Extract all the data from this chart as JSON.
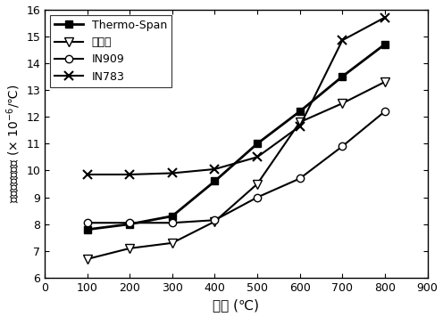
{
  "title": "",
  "xlabel": "温度 (℃)",
  "ylabel": "平均线膨胀系数 (× 10$^{-6}$/℃)",
  "xlim": [
    0,
    900
  ],
  "ylim": [
    6,
    16
  ],
  "xticks": [
    0,
    100,
    200,
    300,
    400,
    500,
    600,
    700,
    800,
    900
  ],
  "yticks": [
    6,
    7,
    8,
    9,
    10,
    11,
    12,
    13,
    14,
    15,
    16
  ],
  "series": [
    {
      "label": "Thermo-Span",
      "x": [
        100,
        200,
        300,
        400,
        500,
        600,
        700,
        800
      ],
      "y": [
        7.8,
        8.0,
        8.3,
        9.6,
        11.0,
        12.2,
        13.5,
        14.7
      ],
      "marker": "s",
      "color": "black",
      "linestyle": "-",
      "linewidth": 2.0,
      "markersize": 6,
      "markerfacecolor": "black"
    },
    {
      "label": "新合金",
      "x": [
        100,
        200,
        300,
        400,
        500,
        600,
        700,
        800
      ],
      "y": [
        6.7,
        7.1,
        7.3,
        8.1,
        9.5,
        11.8,
        12.5,
        13.3
      ],
      "marker": "v",
      "color": "black",
      "linestyle": "-",
      "linewidth": 1.5,
      "markersize": 7,
      "markerfacecolor": "white"
    },
    {
      "label": "IN909",
      "x": [
        100,
        200,
        300,
        400,
        500,
        600,
        700,
        800
      ],
      "y": [
        8.05,
        8.05,
        8.05,
        8.15,
        9.0,
        9.7,
        10.9,
        12.2
      ],
      "marker": "o",
      "color": "black",
      "linestyle": "-",
      "linewidth": 1.5,
      "markersize": 6,
      "markerfacecolor": "white"
    },
    {
      "label": "IN783",
      "x": [
        100,
        200,
        300,
        400,
        500,
        600,
        700,
        800
      ],
      "y": [
        9.85,
        9.85,
        9.9,
        10.05,
        10.5,
        11.65,
        14.85,
        15.7
      ],
      "marker": "x",
      "color": "black",
      "linestyle": "-",
      "linewidth": 1.5,
      "markersize": 7,
      "markeredgewidth": 1.5
    }
  ],
  "legend_loc": "upper left",
  "background_color": "white",
  "figwidth": 4.96,
  "figheight": 3.56,
  "dpi": 100
}
